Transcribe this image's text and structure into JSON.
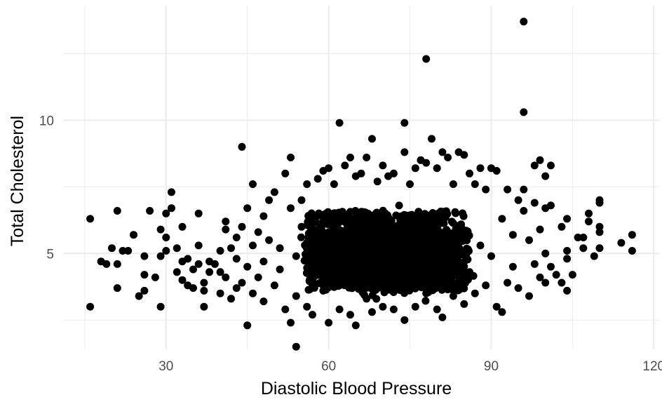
{
  "chart_data": {
    "type": "scatter",
    "title": "",
    "xlabel": "Diastolic Blood Pressure",
    "ylabel": "Total Cholesterol",
    "xlim": [
      11,
      121
    ],
    "ylim": [
      1.4,
      14.3
    ],
    "x_ticks": [
      30,
      60,
      90,
      120
    ],
    "y_ticks": [
      5,
      10
    ],
    "x_minor_ticks": [
      15,
      45,
      75,
      105
    ],
    "y_minor_ticks": [
      2.5,
      7.5,
      12.5
    ],
    "x_tick_labels": [
      "30",
      "60",
      "90",
      "120"
    ],
    "y_tick_labels": [
      "5",
      "10"
    ],
    "grid": true,
    "legend": "none",
    "point_color": "#000000",
    "gridline_color": "#ebebeb",
    "series": [
      {
        "points": [
          [
            16,
            6.3
          ],
          [
            16,
            3.0
          ],
          [
            18,
            4.7
          ],
          [
            19,
            4.6
          ],
          [
            20,
            5.2
          ],
          [
            21,
            6.6
          ],
          [
            21,
            4.6
          ],
          [
            21,
            3.7
          ],
          [
            22,
            5.1
          ],
          [
            23,
            5.1
          ],
          [
            24,
            5.7
          ],
          [
            25,
            3.4
          ],
          [
            26,
            4.9
          ],
          [
            26,
            4.2
          ],
          [
            26,
            3.6
          ],
          [
            27,
            6.6
          ],
          [
            28,
            4.1
          ],
          [
            29,
            5.9
          ],
          [
            29,
            4.9
          ],
          [
            29,
            3.0
          ],
          [
            30,
            6.5
          ],
          [
            30,
            5.1
          ],
          [
            30,
            5.6
          ],
          [
            31,
            6.7
          ],
          [
            31,
            7.3
          ],
          [
            32,
            4.3
          ],
          [
            32,
            5.2
          ],
          [
            33,
            4.7
          ],
          [
            33,
            6.0
          ],
          [
            33,
            4.0
          ],
          [
            34,
            4.8
          ],
          [
            34,
            3.8
          ],
          [
            35,
            3.7
          ],
          [
            35,
            4.4
          ],
          [
            36,
            6.5
          ],
          [
            36,
            5.3
          ],
          [
            36,
            4.6
          ],
          [
            37,
            3.0
          ],
          [
            37,
            3.6
          ],
          [
            37,
            3.9
          ],
          [
            38,
            4.7
          ],
          [
            38,
            4.3
          ],
          [
            39,
            4.6
          ],
          [
            40,
            5.1
          ],
          [
            40,
            3.5
          ],
          [
            40,
            4.3
          ],
          [
            41,
            6.2
          ],
          [
            41,
            5.9
          ],
          [
            41,
            4.1
          ],
          [
            42,
            5.2
          ],
          [
            42,
            3.3
          ],
          [
            43,
            5.6
          ],
          [
            43,
            4.8
          ],
          [
            43,
            3.7
          ],
          [
            44,
            9.0
          ],
          [
            44,
            6.0
          ],
          [
            44,
            3.9
          ],
          [
            45,
            2.3
          ],
          [
            45,
            6.7
          ],
          [
            45,
            4.5
          ],
          [
            46,
            7.6
          ],
          [
            46,
            5.3
          ],
          [
            46,
            3.5
          ],
          [
            47,
            5.8
          ],
          [
            47,
            4.1
          ],
          [
            48,
            6.4
          ],
          [
            48,
            3.2
          ],
          [
            48,
            4.7
          ],
          [
            49,
            7.0
          ],
          [
            49,
            5.5
          ],
          [
            50,
            7.3
          ],
          [
            50,
            3.8
          ],
          [
            51,
            5.2
          ],
          [
            51,
            4.4
          ],
          [
            52,
            8.0
          ],
          [
            52,
            2.9
          ],
          [
            53,
            8.6
          ],
          [
            53,
            6.7
          ],
          [
            53,
            2.4
          ],
          [
            54,
            4.9
          ],
          [
            54,
            1.5
          ],
          [
            54,
            3.4
          ],
          [
            55,
            7.0
          ],
          [
            55,
            6.0
          ],
          [
            56,
            7.6
          ],
          [
            56,
            3.0
          ],
          [
            57,
            5.4
          ],
          [
            57,
            2.7
          ],
          [
            58,
            7.8
          ],
          [
            58,
            4.4
          ],
          [
            59,
            8.1
          ],
          [
            59,
            3.6
          ],
          [
            60,
            8.2
          ],
          [
            60,
            2.4
          ],
          [
            61,
            7.6
          ],
          [
            61,
            6.3
          ],
          [
            62,
            9.9
          ],
          [
            62,
            2.9
          ],
          [
            63,
            8.3
          ],
          [
            63,
            5.5
          ],
          [
            64,
            8.6
          ],
          [
            64,
            2.7
          ],
          [
            65,
            2.3
          ],
          [
            65,
            7.9
          ],
          [
            66,
            8.0
          ],
          [
            66,
            4.2
          ],
          [
            67,
            8.6
          ],
          [
            67,
            3.3
          ],
          [
            68,
            9.3
          ],
          [
            68,
            2.8
          ],
          [
            69,
            7.7
          ],
          [
            69,
            6.1
          ],
          [
            70,
            8.3
          ],
          [
            70,
            3.0
          ],
          [
            71,
            7.9
          ],
          [
            71,
            4.5
          ],
          [
            72,
            8.0
          ],
          [
            72,
            2.9
          ],
          [
            73,
            6.8
          ],
          [
            73,
            3.9
          ],
          [
            74,
            9.9
          ],
          [
            74,
            8.8
          ],
          [
            74,
            2.5
          ],
          [
            75,
            7.6
          ],
          [
            75,
            5.1
          ],
          [
            76,
            8.2
          ],
          [
            76,
            3.0
          ],
          [
            77,
            8.5
          ],
          [
            77,
            4.3
          ],
          [
            78,
            12.3
          ],
          [
            78,
            8.4
          ],
          [
            78,
            3.5
          ],
          [
            79,
            9.3
          ],
          [
            79,
            6.4
          ],
          [
            80,
            8.2
          ],
          [
            80,
            2.9
          ],
          [
            81,
            8.8
          ],
          [
            81,
            2.6
          ],
          [
            82,
            8.6
          ],
          [
            82,
            4.6
          ],
          [
            83,
            7.6
          ],
          [
            83,
            3.4
          ],
          [
            84,
            8.8
          ],
          [
            84,
            6.0
          ],
          [
            85,
            8.7
          ],
          [
            85,
            3.1
          ],
          [
            86,
            8.0
          ],
          [
            86,
            4.3
          ],
          [
            87,
            7.6
          ],
          [
            87,
            3.5
          ],
          [
            88,
            8.2
          ],
          [
            88,
            5.3
          ],
          [
            89,
            7.4
          ],
          [
            89,
            3.8
          ],
          [
            90,
            8.2
          ],
          [
            90,
            4.9
          ],
          [
            91,
            8.1
          ],
          [
            91,
            3.0
          ],
          [
            92,
            2.8
          ],
          [
            92,
            6.3
          ],
          [
            93,
            7.4
          ],
          [
            93,
            3.9
          ],
          [
            94,
            5.7
          ],
          [
            94,
            4.5
          ],
          [
            95,
            7.0
          ],
          [
            95,
            3.7
          ],
          [
            96,
            13.7
          ],
          [
            96,
            10.3
          ],
          [
            96,
            7.4
          ],
          [
            96,
            6.6
          ],
          [
            97,
            5.5
          ],
          [
            97,
            3.4
          ],
          [
            98,
            8.3
          ],
          [
            98,
            6.9
          ],
          [
            98,
            4.6
          ],
          [
            99,
            8.5
          ],
          [
            99,
            5.9
          ],
          [
            99,
            4.1
          ],
          [
            100,
            7.9
          ],
          [
            100,
            6.7
          ],
          [
            100,
            5.0
          ],
          [
            100,
            3.9
          ],
          [
            101,
            8.3
          ],
          [
            101,
            6.8
          ],
          [
            101,
            4.5
          ],
          [
            102,
            4.2
          ],
          [
            103,
            6.0
          ],
          [
            103,
            3.9
          ],
          [
            104,
            6.3
          ],
          [
            104,
            5.1
          ],
          [
            104,
            4.8
          ],
          [
            104,
            3.6
          ],
          [
            105,
            4.2
          ],
          [
            106,
            5.6
          ],
          [
            107,
            5.6
          ],
          [
            107,
            5.2
          ],
          [
            108,
            6.5
          ],
          [
            108,
            6.2
          ],
          [
            109,
            4.9
          ],
          [
            110,
            7.0
          ],
          [
            110,
            6.9
          ],
          [
            110,
            6.0
          ],
          [
            110,
            5.8
          ],
          [
            110,
            5.2
          ],
          [
            114,
            5.4
          ],
          [
            116,
            5.7
          ],
          [
            116,
            5.1
          ]
        ],
        "cluster_center": [
          70,
          4.9
        ],
        "cluster_x_range": [
          50,
          92
        ],
        "cluster_y_range": [
          3.2,
          7.2
        ]
      }
    ]
  }
}
